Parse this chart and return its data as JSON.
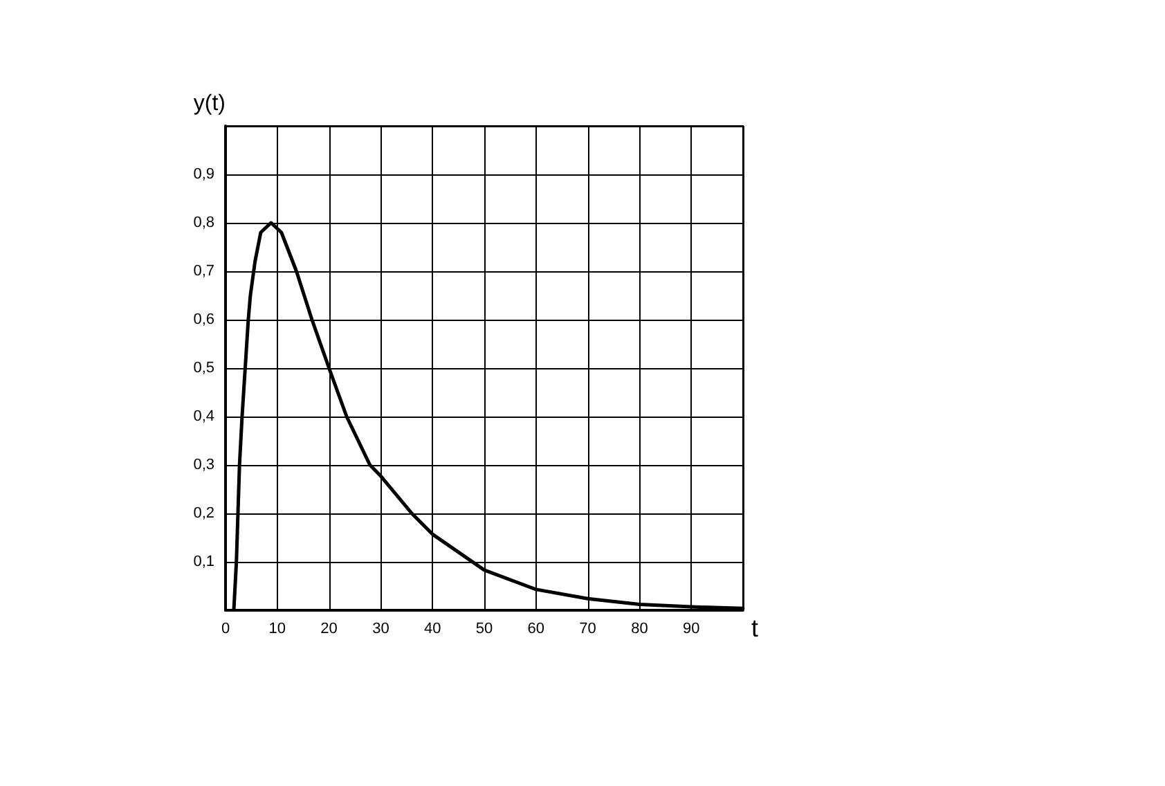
{
  "chart_data": {
    "type": "line",
    "xlabel": "t",
    "ylabel": "y(t)",
    "x": [
      1.6,
      2.1,
      2.7,
      3.2,
      3.8,
      4.4,
      4.8,
      5.7,
      6.8,
      8.8,
      10.8,
      13.7,
      16.7,
      20,
      23.4,
      27.9,
      30,
      36,
      40,
      50,
      60,
      70,
      80,
      90,
      100
    ],
    "series": [
      {
        "color": "#000000",
        "values": [
          0,
          0.1,
          0.3,
          0.4,
          0.5,
          0.6,
          0.65,
          0.72,
          0.78,
          0.8,
          0.78,
          0.7,
          0.6,
          0.5,
          0.4,
          0.3,
          0.277,
          0.2,
          0.157,
          0.083,
          0.043,
          0.024,
          0.012,
          0.007,
          0.004
        ]
      }
    ],
    "xlim": [
      0,
      100
    ],
    "ylim": [
      0,
      1
    ],
    "xticks": [
      0,
      10,
      20,
      30,
      40,
      50,
      60,
      70,
      80,
      90,
      {
        "value": 100,
        "label": null
      }
    ],
    "yticks": [
      {
        "value": 0,
        "label": null
      },
      {
        "value": 0.1,
        "label": "0,1"
      },
      {
        "value": 0.2,
        "label": "0,2"
      },
      {
        "value": 0.3,
        "label": "0,3"
      },
      {
        "value": 0.4,
        "label": "0,4"
      },
      {
        "value": 0.5,
        "label": "0,5"
      },
      {
        "value": 0.6,
        "label": "0,6"
      },
      {
        "value": 0.7,
        "label": "0,7"
      },
      {
        "value": 0.8,
        "label": "0,8"
      },
      {
        "value": 0.9,
        "label": "0,9"
      },
      {
        "value": 1,
        "label": null
      }
    ],
    "grid": true,
    "marker": "none",
    "line_style": "solid"
  }
}
